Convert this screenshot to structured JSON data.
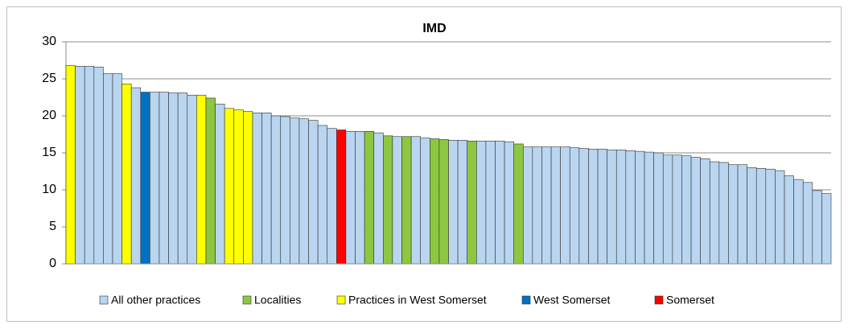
{
  "chart_data": {
    "type": "bar",
    "title": "IMD",
    "categories": [
      null,
      null,
      null,
      null,
      null,
      null,
      null,
      null,
      null,
      null,
      null,
      null,
      null,
      null,
      null,
      null,
      null,
      null,
      null,
      null,
      null,
      null,
      null,
      null,
      null,
      null,
      null,
      null,
      null,
      null,
      null,
      null,
      null,
      null,
      null,
      null,
      null,
      null,
      null,
      null,
      null,
      null,
      null,
      null,
      null,
      null,
      null,
      null,
      null,
      null,
      null,
      null,
      null,
      null,
      null,
      null,
      null,
      null,
      null,
      null,
      null,
      null,
      null,
      null,
      null,
      null,
      null,
      null,
      null,
      null,
      null,
      null,
      null,
      null,
      null,
      null,
      null,
      null,
      null,
      null,
      null,
      null
    ],
    "series": [
      {
        "name": "All other practices",
        "color": "#b9d5f0",
        "values": [
          null,
          26.7,
          26.7,
          26.6,
          25.7,
          25.7,
          null,
          23.8,
          null,
          23.2,
          23.2,
          23.1,
          23.1,
          22.8,
          null,
          null,
          21.6,
          null,
          null,
          null,
          20.4,
          20.4,
          20.0,
          19.9,
          19.7,
          19.6,
          19.4,
          18.7,
          18.3,
          null,
          17.9,
          17.9,
          null,
          17.7,
          null,
          17.2,
          null,
          17.2,
          17.0,
          null,
          null,
          16.7,
          16.7,
          null,
          16.6,
          16.6,
          16.6,
          16.5,
          null,
          15.8,
          15.8,
          15.8,
          15.8,
          15.8,
          15.7,
          15.6,
          15.5,
          15.5,
          15.4,
          15.4,
          15.3,
          15.2,
          15.1,
          15.0,
          14.7,
          14.7,
          14.6,
          14.4,
          14.2,
          13.8,
          13.7,
          13.4,
          13.4,
          13.0,
          12.9,
          12.8,
          12.6,
          11.9,
          11.4,
          11.0,
          9.9,
          9.5
        ]
      },
      {
        "name": "Localities",
        "color": "#8dc63f",
        "values": [
          null,
          null,
          null,
          null,
          null,
          null,
          null,
          null,
          null,
          null,
          null,
          null,
          null,
          null,
          null,
          22.4,
          null,
          null,
          null,
          null,
          null,
          null,
          null,
          null,
          null,
          null,
          null,
          null,
          null,
          null,
          null,
          null,
          17.9,
          null,
          17.3,
          null,
          17.2,
          null,
          null,
          16.9,
          16.8,
          null,
          null,
          16.6,
          null,
          null,
          null,
          null,
          16.2,
          null,
          null,
          null,
          null,
          null,
          null,
          null,
          null,
          null,
          null,
          null,
          null,
          null,
          null,
          null,
          null,
          null,
          null,
          null,
          null,
          null,
          null,
          null,
          null,
          null,
          null,
          null,
          null,
          null,
          null,
          null,
          null,
          null
        ]
      },
      {
        "name": "Practices in West Somerset",
        "color": "#ffff00",
        "values": [
          26.8,
          null,
          null,
          null,
          null,
          null,
          24.3,
          null,
          null,
          null,
          null,
          null,
          null,
          null,
          22.8,
          null,
          null,
          21.0,
          20.8,
          20.6,
          null,
          null,
          null,
          null,
          null,
          null,
          null,
          null,
          null,
          null,
          null,
          null,
          null,
          null,
          null,
          null,
          null,
          null,
          null,
          null,
          null,
          null,
          null,
          null,
          null,
          null,
          null,
          null,
          null,
          null,
          null,
          null,
          null,
          null,
          null,
          null,
          null,
          null,
          null,
          null,
          null,
          null,
          null,
          null,
          null,
          null,
          null,
          null,
          null,
          null,
          null,
          null,
          null,
          null,
          null,
          null,
          null,
          null,
          null,
          null,
          null,
          null
        ]
      },
      {
        "name": "West Somerset",
        "color": "#0070c0",
        "values": [
          null,
          null,
          null,
          null,
          null,
          null,
          null,
          null,
          23.2,
          null,
          null,
          null,
          null,
          null,
          null,
          null,
          null,
          null,
          null,
          null,
          null,
          null,
          null,
          null,
          null,
          null,
          null,
          null,
          null,
          null,
          null,
          null,
          null,
          null,
          null,
          null,
          null,
          null,
          null,
          null,
          null,
          null,
          null,
          null,
          null,
          null,
          null,
          null,
          null,
          null,
          null,
          null,
          null,
          null,
          null,
          null,
          null,
          null,
          null,
          null,
          null,
          null,
          null,
          null,
          null,
          null,
          null,
          null,
          null,
          null,
          null,
          null,
          null,
          null,
          null,
          null,
          null,
          null,
          null,
          null,
          null,
          null
        ]
      },
      {
        "name": "Somerset",
        "color": "#ff0000",
        "values": [
          null,
          null,
          null,
          null,
          null,
          null,
          null,
          null,
          null,
          null,
          null,
          null,
          null,
          null,
          null,
          null,
          null,
          null,
          null,
          null,
          null,
          null,
          null,
          null,
          null,
          null,
          null,
          null,
          null,
          18.1,
          null,
          null,
          null,
          null,
          null,
          null,
          null,
          null,
          null,
          null,
          null,
          null,
          null,
          null,
          null,
          null,
          null,
          null,
          null,
          null,
          null,
          null,
          null,
          null,
          null,
          null,
          null,
          null,
          null,
          null,
          null,
          null,
          null,
          null,
          null,
          null,
          null,
          null,
          null,
          null,
          null,
          null,
          null,
          null,
          null,
          null,
          null,
          null,
          null,
          null,
          null,
          null
        ]
      }
    ],
    "ylim": [
      0,
      30
    ],
    "yticks": [
      0,
      5,
      10,
      15,
      20,
      25,
      30
    ],
    "grid": true
  }
}
